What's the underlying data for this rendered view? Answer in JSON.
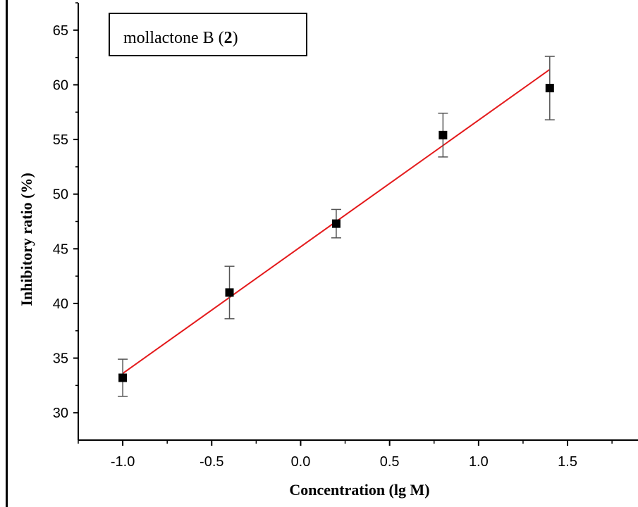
{
  "chart_data": {
    "type": "scatter",
    "xlabel": "Concentration (lg M)",
    "ylabel": "Inhibitory ratio (%)",
    "legend_text": "mollactone B (",
    "legend_bold": "2",
    "legend_close": ")",
    "legend_placement": "top-left",
    "xlim": [
      -1.25,
      1.9
    ],
    "ylim": [
      27.5,
      67.5
    ],
    "x_ticks": [
      -1.0,
      -0.5,
      0.0,
      0.5,
      1.0,
      1.5
    ],
    "x_tick_labels": [
      "-1.0",
      "-0.5",
      "0.0",
      "0.5",
      "1.0",
      "1.5"
    ],
    "y_ticks": [
      30,
      35,
      40,
      45,
      50,
      55,
      60,
      65
    ],
    "y_tick_labels": [
      "30",
      "35",
      "40",
      "45",
      "50",
      "55",
      "60",
      "65"
    ],
    "grid": false,
    "series": [
      {
        "points": [
          {
            "x": -1.0,
            "y": 33.2,
            "err": 1.7
          },
          {
            "x": -0.4,
            "y": 41.0,
            "err": 2.4
          },
          {
            "x": 0.2,
            "y": 47.3,
            "err": 1.3
          },
          {
            "x": 0.8,
            "y": 55.4,
            "err": 2.0
          },
          {
            "x": 1.4,
            "y": 59.7,
            "err": 2.9
          }
        ],
        "color": "#000000"
      }
    ],
    "fit_line": {
      "x": [
        -1.0,
        1.4
      ],
      "y": [
        33.6,
        61.4
      ],
      "color": "#e41a1c"
    }
  }
}
